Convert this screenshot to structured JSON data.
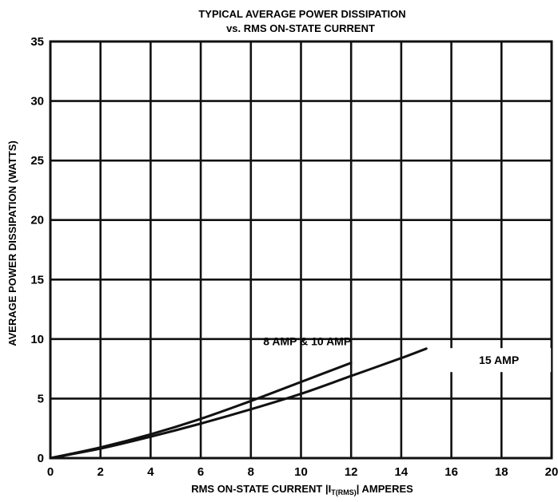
{
  "chart_data": {
    "type": "line",
    "title_line1": "TYPICAL AVERAGE POWER DISSIPATION",
    "title_line2": "vs. RMS ON-STATE CURRENT",
    "xlabel_prefix": "RMS ON-STATE CURRENT |",
    "xlabel_symbol": "I",
    "xlabel_subscript": "T(RMS)",
    "xlabel_suffix": "| AMPERES",
    "ylabel": "AVERAGE POWER DISSIPATION (WATTS)",
    "xlim": [
      0,
      20
    ],
    "ylim": [
      0,
      35
    ],
    "x_ticks": [
      "0",
      "2",
      "4",
      "6",
      "8",
      "10",
      "12",
      "14",
      "16",
      "18",
      "20"
    ],
    "y_ticks": [
      "0",
      "5",
      "10",
      "15",
      "20",
      "25",
      "30",
      "35"
    ],
    "grid": true,
    "series": [
      {
        "name": "8 AMP & 10 AMP",
        "x": [
          0,
          2,
          4,
          6,
          8,
          10,
          12
        ],
        "y": [
          0,
          0.9,
          2.0,
          3.3,
          4.8,
          6.4,
          8.0
        ]
      },
      {
        "name": "15 AMP",
        "x": [
          0,
          2,
          4,
          6,
          8,
          10,
          12,
          14,
          15
        ],
        "y": [
          0,
          0.8,
          1.8,
          2.9,
          4.1,
          5.4,
          6.9,
          8.4,
          9.2
        ]
      }
    ]
  }
}
